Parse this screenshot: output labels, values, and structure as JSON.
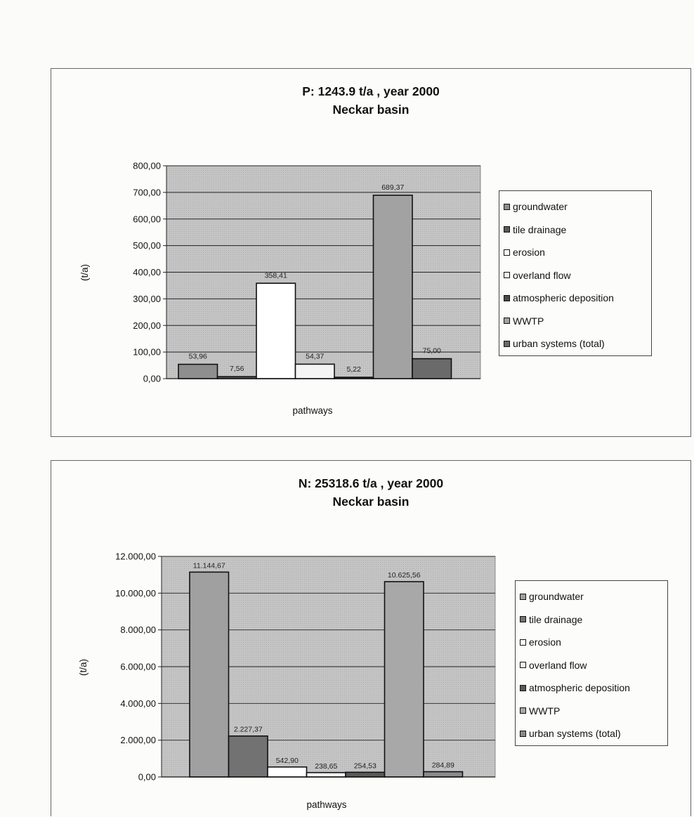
{
  "chart_data": [
    {
      "type": "bar",
      "title": "P: 1243.9 t/a , year 2000",
      "subtitle": "Neckar basin",
      "xlabel": "pathways",
      "ylabel": "(t/a)",
      "ylim": [
        0,
        800
      ],
      "yticks": [
        "0,00",
        "100,00",
        "200,00",
        "300,00",
        "400,00",
        "500,00",
        "600,00",
        "700,00",
        "800,00"
      ],
      "grid": true,
      "legend_position": "right",
      "series": [
        {
          "name": "groundwater",
          "values": [
            53.96
          ],
          "label": "53,96",
          "color": "#8e8e8e"
        },
        {
          "name": "tile drainage",
          "values": [
            7.56
          ],
          "label": "7,56",
          "color": "#5a5a5a"
        },
        {
          "name": "erosion",
          "values": [
            358.41
          ],
          "label": "358,41",
          "color": "#ffffff"
        },
        {
          "name": "overland flow",
          "values": [
            54.37
          ],
          "label": "54,37",
          "color": "#f4f4f4"
        },
        {
          "name": "atmospheric deposition",
          "values": [
            5.22
          ],
          "label": "5,22",
          "color": "#4a4a4a"
        },
        {
          "name": "WWTP",
          "values": [
            689.37
          ],
          "label": "689,37",
          "color": "#a2a2a2"
        },
        {
          "name": "urban systems (total)",
          "values": [
            75.0
          ],
          "label": "75,00",
          "color": "#6a6a6a"
        }
      ]
    },
    {
      "type": "bar",
      "title": "N: 25318.6 t/a ,  year 2000",
      "subtitle": "Neckar basin",
      "xlabel": "pathways",
      "ylabel": "(t/a)",
      "ylim": [
        0,
        12000
      ],
      "yticks": [
        "0,00",
        "2.000,00",
        "4.000,00",
        "6.000,00",
        "8.000,00",
        "10.000,00",
        "12.000,00"
      ],
      "grid": true,
      "legend_position": "right",
      "series": [
        {
          "name": "groundwater",
          "values": [
            11144.67
          ],
          "label": "11.144,67",
          "color": "#a0a0a0"
        },
        {
          "name": "tile drainage",
          "values": [
            2227.37
          ],
          "label": "2.227,37",
          "color": "#727272"
        },
        {
          "name": "erosion",
          "values": [
            542.9
          ],
          "label": "542,90",
          "color": "#ffffff"
        },
        {
          "name": "overland flow",
          "values": [
            238.65
          ],
          "label": "238,65",
          "color": "#f2f2f2"
        },
        {
          "name": "atmospheric deposition",
          "values": [
            254.53
          ],
          "label": "254,53",
          "color": "#5a5a5a"
        },
        {
          "name": "WWTP",
          "values": [
            10625.56
          ],
          "label": "10.625,56",
          "color": "#a8a8a8"
        },
        {
          "name": "urban systems (total)",
          "values": [
            284.89
          ],
          "label": "284,89",
          "color": "#8a8a8a"
        }
      ]
    }
  ]
}
